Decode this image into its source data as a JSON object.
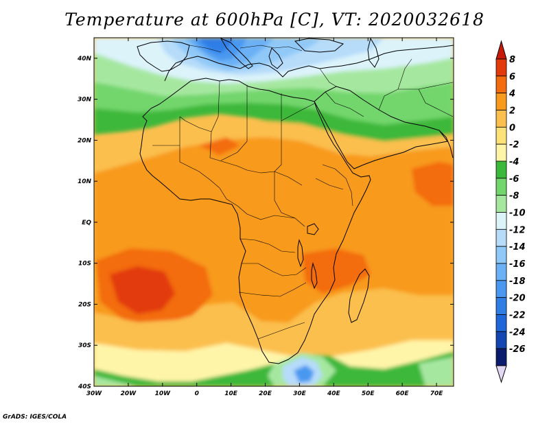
{
  "title": "Temperature at 600hPa [C], VT: 2020032618",
  "credit": "GrADS: IGES/COLA",
  "map": {
    "lon_range": [
      -30,
      75
    ],
    "lat_range": [
      -40,
      45
    ],
    "lon_ticks": [
      "30W",
      "20W",
      "10W",
      "0",
      "10E",
      "20E",
      "30E",
      "40E",
      "50E",
      "60E",
      "70E"
    ],
    "lat_ticks": [
      "40N",
      "30N",
      "20N",
      "10N",
      "EQ",
      "10S",
      "20S",
      "30S",
      "40S"
    ],
    "colors": {
      "n26": "#0b1c6e",
      "n24": "#1346b0",
      "n22": "#1f66d8",
      "n20": "#2f7ee6",
      "n18": "#4a98f0",
      "n16": "#6cb1f5",
      "n14": "#90c9f8",
      "n12": "#b6dcfa",
      "n10": "#dcf3fa",
      "n8": "#a6e7a0",
      "n6": "#72d66c",
      "n4": "#3cb83a",
      "n2": "#fff5a8",
      "p0": "#fde27a",
      "p2": "#fbbf4e",
      "p4": "#f89a1e",
      "p6": "#f36c10",
      "p8": "#e23a0c",
      "over": "#c81a0a",
      "under": "#e2d8f3"
    }
  },
  "colorbar": {
    "labels": [
      "8",
      "6",
      "4",
      "2",
      "0",
      "-2",
      "-4",
      "-6",
      "-8",
      "-10",
      "-12",
      "-14",
      "-16",
      "-18",
      "-20",
      "-22",
      "-24",
      "-26"
    ],
    "colors": [
      "#e23a0c",
      "#f36c10",
      "#f89a1e",
      "#fbbf4e",
      "#fde27a",
      "#fff5a8",
      "#3cb83a",
      "#72d66c",
      "#a6e7a0",
      "#dcf3fa",
      "#b6dcfa",
      "#90c9f8",
      "#6cb1f5",
      "#4a98f0",
      "#2f7ee6",
      "#1f66d8",
      "#1346b0",
      "#0b1c6e"
    ],
    "over_color": "#c81a0a",
    "under_color": "#e2d8f3"
  }
}
